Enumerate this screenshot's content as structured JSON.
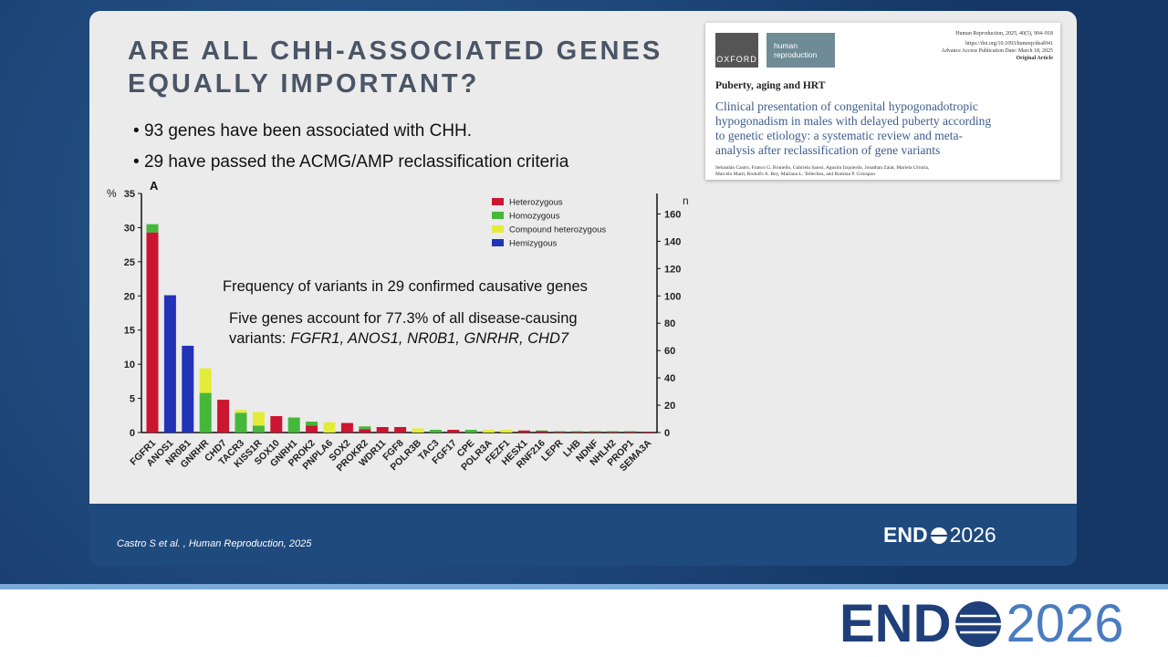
{
  "slide": {
    "title": [
      "ARE ALL CHH-ASSOCIATED GENES",
      "EQUALLY IMPORTANT?"
    ],
    "bullets": [
      "93 genes have been associated with CHH.",
      "29 have passed the ACMG/AMP reclassification criteria"
    ],
    "citation": "Castro S et al. , Human Reproduction, 2025",
    "logo": {
      "left": "END",
      "right": "2026"
    }
  },
  "paper": {
    "publisher": "OXFORD",
    "journal_logo": [
      "human",
      "reproduction"
    ],
    "meta": [
      "Human Reproduction, 2025, 40(5), 904–918",
      "https://doi.org/10.1093/humrep/deaf041",
      "Advance Access Publication Date: March 18, 2025",
      "Original Article"
    ],
    "section": "Puberty, aging and HRT",
    "title": [
      "Clinical presentation of congenital hypogonadotropic",
      "hypogonadism in males with delayed puberty according",
      "to genetic etiology: a systematic review and meta-",
      "analysis after reclassification of gene variants"
    ],
    "authors": [
      "Sebastián Castro, Franco G. Brunello, Gabriela Sansó, Agustín Izquierdo, Jonathan Zaiat, Mariela Urrutia,",
      "Marcelo Marti, Rodolfo A. Rey, Mariana L. Tellechea, and Romina P. Grinspon"
    ]
  },
  "chart_data": {
    "type": "stacked-bar",
    "panel_label": "A",
    "y_label": "%",
    "y2_label": "n",
    "annotations": [
      "Frequency of variants in 29 confirmed causative genes",
      "Five genes account for 77.3% of all disease-causing",
      "variants:",
      "FGFR1, ANOS1, NR0B1, GNRHR, CHD7"
    ],
    "categories": [
      "FGFR1",
      "ANOS1",
      "NR0B1",
      "GNRHR",
      "CHD7",
      "TACR3",
      "KISS1R",
      "SOX10",
      "GNRH1",
      "PROK2",
      "PNPLA6",
      "SOX2",
      "PROKR2",
      "WDR11",
      "FGF8",
      "POLR3B",
      "TAC3",
      "FGF17",
      "CPE",
      "POLR3A",
      "FEZF1",
      "HESX1",
      "RNF216",
      "LEPR",
      "LHB",
      "NDNF",
      "NHLH2",
      "PROP1",
      "SEMA3A"
    ],
    "series": [
      {
        "name": "Heterozygous",
        "color": "#cc1530",
        "values": [
          29.3,
          0,
          0,
          0,
          4.8,
          0,
          0,
          2.4,
          0,
          1.0,
          0,
          1.4,
          0.5,
          0.8,
          0.8,
          0,
          0,
          0.4,
          0,
          0,
          0,
          0.3,
          0.2,
          0.1,
          0.1,
          0.1,
          0.1,
          0.1,
          0.1
        ]
      },
      {
        "name": "Homozygous",
        "color": "#45b83a",
        "values": [
          1.2,
          0,
          0,
          5.8,
          0,
          2.9,
          1.0,
          0,
          2.2,
          0.6,
          0,
          0,
          0.4,
          0,
          0,
          0,
          0.4,
          0,
          0.4,
          0,
          0,
          0,
          0.1,
          0.1,
          0.1,
          0.1,
          0.1,
          0.1,
          0
        ]
      },
      {
        "name": "Compound heterozygous",
        "color": "#e4ec3a",
        "values": [
          0,
          0,
          0,
          3.6,
          0,
          0.4,
          2.0,
          0,
          0,
          0,
          1.5,
          0,
          0,
          0,
          0,
          0.6,
          0,
          0,
          0,
          0.4,
          0.4,
          0,
          0,
          0,
          0,
          0,
          0,
          0,
          0
        ]
      },
      {
        "name": "Hemizygous",
        "color": "#2233b8",
        "values": [
          0,
          20.1,
          12.7,
          0,
          0,
          0,
          0,
          0,
          0,
          0,
          0,
          0,
          0,
          0,
          0,
          0,
          0,
          0,
          0,
          0,
          0,
          0,
          0,
          0,
          0,
          0,
          0,
          0,
          0
        ]
      }
    ],
    "ylim": [
      0,
      35
    ],
    "yticks": [
      0,
      5,
      10,
      15,
      20,
      25,
      30,
      35
    ],
    "y2lim": [
      0,
      175
    ],
    "y2ticks": [
      0,
      20,
      40,
      60,
      80,
      100,
      120,
      140,
      160
    ],
    "legend": "upper-center"
  }
}
